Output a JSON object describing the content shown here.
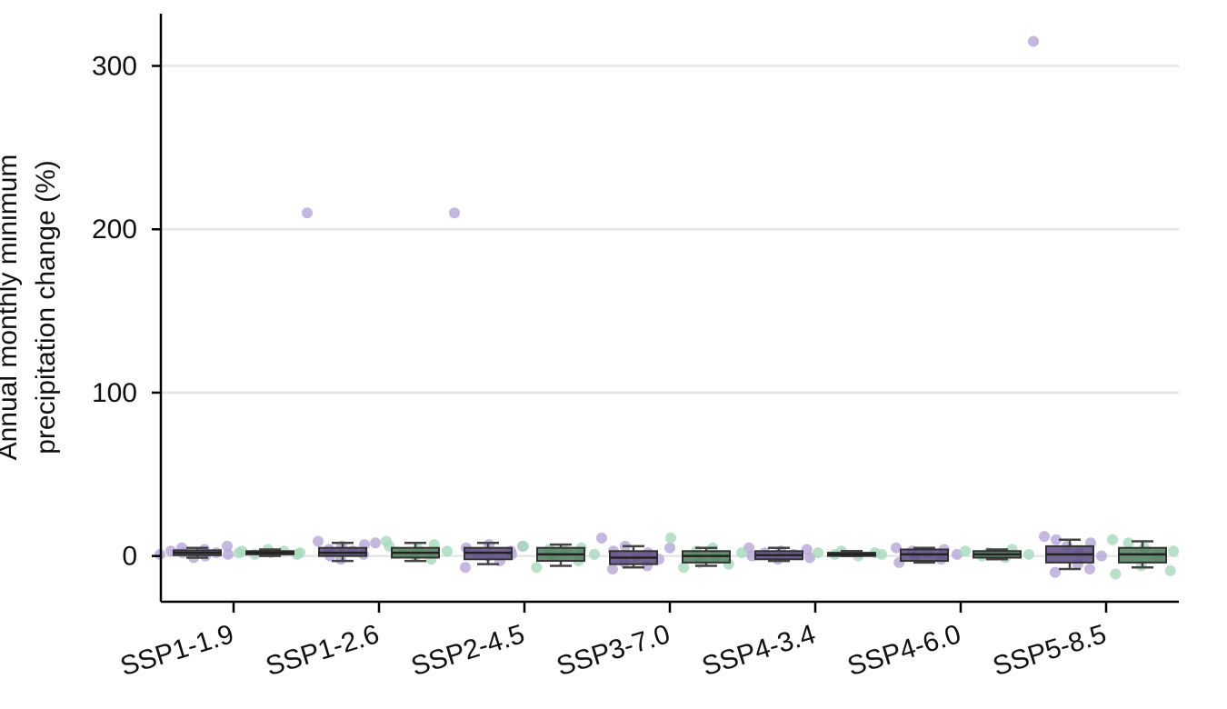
{
  "chart_data": {
    "type": "box+strip",
    "ylabel_lines": [
      "Annual monthly minimum",
      "precipitation change (%)"
    ],
    "ylim": [
      -28,
      332
    ],
    "yticks": [
      0,
      100,
      200,
      300
    ],
    "grid": "horizontal",
    "categories": [
      "SSP1-1.9",
      "SSP1-2.6",
      "SSP2-4.5",
      "SSP3-7.0",
      "SSP4-3.4",
      "SSP4-6.0",
      "SSP5-8.5"
    ],
    "series": [
      {
        "box_color": "#5b4a80",
        "point_color": "#b7a6d8",
        "boxes": [
          {
            "q1": 0.5,
            "median": 2,
            "q3": 3.5,
            "whisker_low": -1,
            "whisker_high": 5
          },
          {
            "q1": 0,
            "median": 2,
            "q3": 5,
            "whisker_low": -3,
            "whisker_high": 8
          },
          {
            "q1": -2,
            "median": 2,
            "q3": 5,
            "whisker_low": -5,
            "whisker_high": 8
          },
          {
            "q1": -5,
            "median": -1,
            "q3": 3,
            "whisker_low": -7,
            "whisker_high": 6
          },
          {
            "q1": -2,
            "median": 0.5,
            "q3": 3,
            "whisker_low": -3,
            "whisker_high": 5
          },
          {
            "q1": -3,
            "median": 1,
            "q3": 4,
            "whisker_low": -4,
            "whisker_high": 5
          },
          {
            "q1": -4,
            "median": 1,
            "q3": 6,
            "whisker_low": -8,
            "whisker_high": 10
          }
        ],
        "points": [
          [
            1,
            3,
            5,
            2,
            -1,
            4,
            0,
            2,
            6,
            1
          ],
          [
            210,
            9,
            4,
            0,
            -2,
            6,
            3,
            1,
            7,
            8
          ],
          [
            210,
            -7,
            5,
            2,
            0,
            7,
            -3,
            3,
            1,
            6
          ],
          [
            11,
            -8,
            3,
            -4,
            6,
            0,
            -6,
            2,
            -2,
            5
          ],
          [
            5,
            0,
            2,
            -2,
            3,
            1,
            4,
            -1
          ],
          [
            5,
            -4,
            3,
            0,
            2,
            -2,
            4,
            1
          ],
          [
            315,
            12,
            -10,
            10,
            6,
            -5,
            2,
            -8,
            8,
            0
          ]
        ]
      },
      {
        "box_color": "#4e7a5c",
        "point_color": "#a8d9bb",
        "boxes": [
          {
            "q1": 1,
            "median": 2,
            "q3": 3,
            "whisker_low": 0,
            "whisker_high": 4
          },
          {
            "q1": -1,
            "median": 2,
            "q3": 5,
            "whisker_low": -3,
            "whisker_high": 8
          },
          {
            "q1": -3,
            "median": 1,
            "q3": 5,
            "whisker_low": -6,
            "whisker_high": 7
          },
          {
            "q1": -4,
            "median": 0,
            "q3": 3,
            "whisker_low": -6,
            "whisker_high": 5
          },
          {
            "q1": 0,
            "median": 1,
            "q3": 2,
            "whisker_low": 0,
            "whisker_high": 3
          },
          {
            "q1": -1,
            "median": 1,
            "q3": 3,
            "whisker_low": -2,
            "whisker_high": 4
          },
          {
            "q1": -4,
            "median": 1,
            "q3": 5,
            "whisker_low": -7,
            "whisker_high": 9
          }
        ],
        "points": [
          [
            2,
            3,
            1,
            4,
            2,
            3,
            1,
            2
          ],
          [
            9,
            6,
            2,
            0,
            4,
            -2,
            7,
            3
          ],
          [
            6,
            -7,
            4,
            0,
            3,
            -3,
            5,
            1
          ],
          [
            11,
            -7,
            3,
            -4,
            5,
            0,
            -5,
            2
          ],
          [
            2,
            1,
            3,
            0,
            2,
            1
          ],
          [
            3,
            0,
            2,
            -1,
            4,
            1
          ],
          [
            10,
            -11,
            8,
            -6,
            5,
            0,
            -9,
            3
          ]
        ]
      }
    ]
  }
}
